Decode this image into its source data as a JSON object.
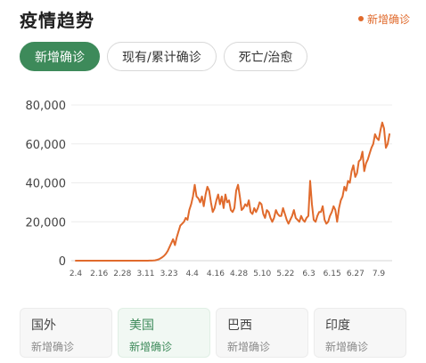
{
  "header": {
    "title": "疫情趋势",
    "legend_label": "新增确诊",
    "legend_color": "#e06a2c"
  },
  "tabs": [
    {
      "label": "新增确诊",
      "active": true
    },
    {
      "label": "现有/累计确诊",
      "active": false
    },
    {
      "label": "死亡/治愈",
      "active": false
    }
  ],
  "chart_data": {
    "type": "line",
    "x_tick_labels": [
      "2.4",
      "2.16",
      "2.28",
      "3.11",
      "3.23",
      "4.4",
      "4.16",
      "4.28",
      "5.10",
      "5.22",
      "6.3",
      "6.15",
      "6.27",
      "7.9"
    ],
    "y_tick_labels": [
      "0",
      "20,000",
      "40,000",
      "60,000",
      "80,000"
    ],
    "ylim": [
      0,
      80000
    ],
    "grid": true,
    "color": "#e06a2c",
    "series": [
      {
        "values": [
          0,
          0,
          0,
          0,
          0,
          0,
          0,
          0,
          0,
          0,
          0,
          0,
          0,
          0,
          0,
          0,
          0,
          0,
          0,
          0,
          0,
          0,
          0,
          0,
          0,
          0,
          0,
          0,
          0,
          0,
          0,
          0,
          0,
          0,
          0,
          0,
          0,
          0,
          0,
          0,
          10,
          30,
          50,
          100,
          200,
          400,
          700,
          1200,
          1800,
          2500,
          3500,
          5000,
          7000,
          9000,
          11000,
          8000,
          12000,
          15000,
          18000,
          19000,
          20000,
          22000,
          21000,
          26000,
          29000,
          33000,
          39000,
          33000,
          32000,
          30000,
          33000,
          28000,
          34000,
          38000,
          36000,
          30000,
          25000,
          27000,
          31000,
          34000,
          29000,
          33000,
          27000,
          34000,
          30000,
          31000,
          26000,
          25000,
          27000,
          36000,
          39000,
          33000,
          26000,
          27000,
          29000,
          28000,
          31000,
          25000,
          24000,
          27000,
          25000,
          27000,
          30000,
          29000,
          24000,
          22000,
          26000,
          25000,
          22000,
          20000,
          22000,
          26000,
          24000,
          23000,
          23000,
          27000,
          24000,
          21000,
          19000,
          21000,
          23000,
          26000,
          22000,
          21000,
          20000,
          23000,
          21000,
          20000,
          22000,
          23000,
          41000,
          29000,
          21000,
          20000,
          23000,
          25000,
          25000,
          28000,
          21000,
          19000,
          20000,
          23000,
          25000,
          28000,
          26000,
          20000,
          27000,
          31000,
          33000,
          38000,
          36000,
          41000,
          40000,
          46000,
          49000,
          43000,
          45000,
          51000,
          52000,
          56000,
          46000,
          50000,
          52000,
          55000,
          58000,
          60000,
          65000,
          63000,
          62000,
          67000,
          71000,
          68000,
          58000,
          60000,
          65000
        ]
      }
    ]
  },
  "cards": [
    {
      "name": "国外",
      "sub": "新增确诊",
      "active": false
    },
    {
      "name": "美国",
      "sub": "新增确诊",
      "active": true
    },
    {
      "name": "巴西",
      "sub": "新增确诊",
      "active": false
    },
    {
      "name": "印度",
      "sub": "新增确诊",
      "active": false
    }
  ],
  "colors": {
    "accent_green": "#3d8a5a",
    "line_orange": "#e06a2c"
  }
}
